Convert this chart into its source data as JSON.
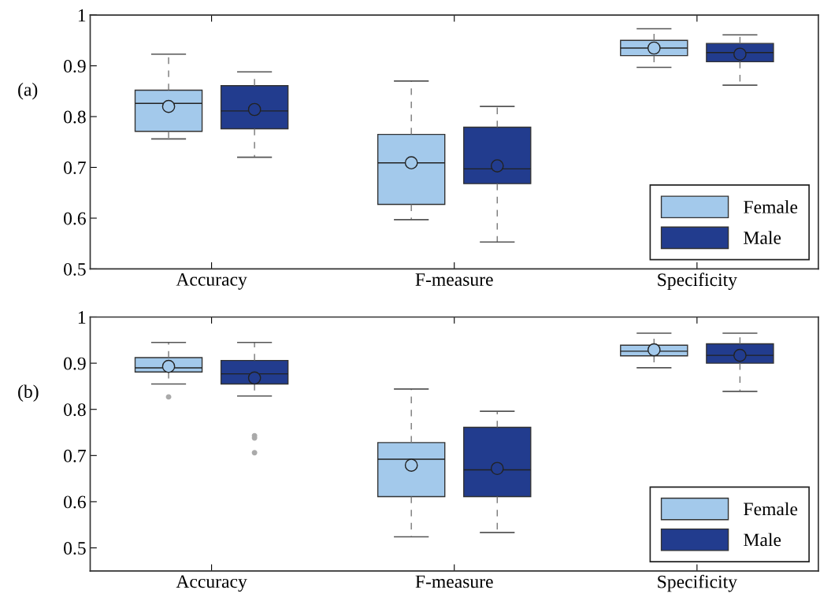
{
  "chart_data": [
    {
      "type": "box",
      "annotations": [
        "(a)"
      ],
      "categories": [
        "Accuracy",
        "F-measure",
        "Specificity"
      ],
      "ylim": [
        0.5,
        1
      ],
      "yticks": [
        0.5,
        0.6,
        0.7,
        0.8,
        0.9,
        1
      ],
      "legend": "bottom right",
      "grid": false,
      "series": [
        {
          "name": "Female",
          "color": "#a3c9eb",
          "boxes": [
            {
              "low": 0.756,
              "q1": 0.771,
              "median": 0.826,
              "q3": 0.852,
              "high": 0.923,
              "mean": 0.82
            },
            {
              "low": 0.597,
              "q1": 0.627,
              "median": 0.709,
              "q3": 0.765,
              "high": 0.87,
              "mean": 0.709
            },
            {
              "low": 0.897,
              "q1": 0.92,
              "median": 0.935,
              "q3": 0.95,
              "high": 0.973,
              "mean": 0.935
            }
          ]
        },
        {
          "name": "Male",
          "color": "#223c8e",
          "boxes": [
            {
              "low": 0.72,
              "q1": 0.776,
              "median": 0.811,
              "q3": 0.861,
              "high": 0.888,
              "mean": 0.814
            },
            {
              "low": 0.553,
              "q1": 0.668,
              "median": 0.697,
              "q3": 0.779,
              "high": 0.82,
              "mean": 0.703
            },
            {
              "low": 0.862,
              "q1": 0.908,
              "median": 0.926,
              "q3": 0.944,
              "high": 0.961,
              "mean": 0.923
            }
          ]
        }
      ]
    },
    {
      "type": "box",
      "annotations": [
        "(b)"
      ],
      "categories": [
        "Accuracy",
        "F-measure",
        "Specificity"
      ],
      "ylim": [
        0.45,
        1
      ],
      "yticks": [
        0.5,
        0.6,
        0.7,
        0.8,
        0.9,
        1
      ],
      "legend": "bottom right",
      "grid": false,
      "series": [
        {
          "name": "Female",
          "color": "#a3c9eb",
          "boxes": [
            {
              "low": 0.855,
              "q1": 0.881,
              "median": 0.89,
              "q3": 0.912,
              "high": 0.945,
              "mean": 0.893,
              "outliers": [
                0.827
              ]
            },
            {
              "low": 0.524,
              "q1": 0.611,
              "median": 0.692,
              "q3": 0.728,
              "high": 0.844,
              "mean": 0.679
            },
            {
              "low": 0.89,
              "q1": 0.916,
              "median": 0.926,
              "q3": 0.939,
              "high": 0.965,
              "mean": 0.929
            }
          ]
        },
        {
          "name": "Male",
          "color": "#223c8e",
          "boxes": [
            {
              "low": 0.829,
              "q1": 0.855,
              "median": 0.877,
              "q3": 0.906,
              "high": 0.945,
              "mean": 0.868,
              "outliers": [
                0.743,
                0.738,
                0.706
              ]
            },
            {
              "low": 0.533,
              "q1": 0.611,
              "median": 0.669,
              "q3": 0.761,
              "high": 0.796,
              "mean": 0.672
            },
            {
              "low": 0.839,
              "q1": 0.9,
              "median": 0.917,
              "q3": 0.942,
              "high": 0.965,
              "mean": 0.917
            }
          ]
        }
      ]
    }
  ]
}
